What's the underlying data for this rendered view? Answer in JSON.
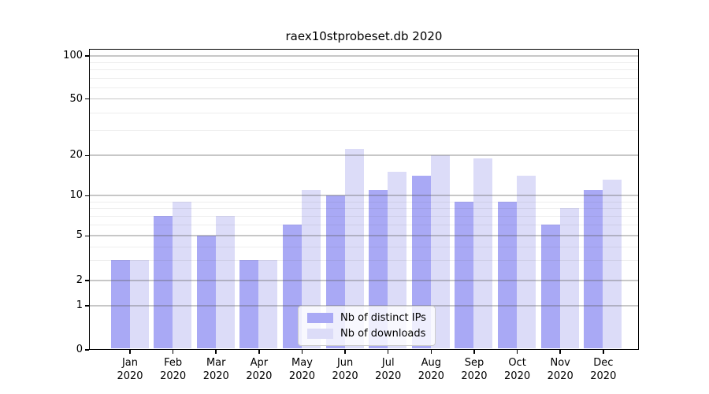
{
  "chart_data": {
    "type": "bar",
    "title": "raex10stprobeset.db 2020",
    "categories": [
      "Jan",
      "Feb",
      "Mar",
      "Apr",
      "May",
      "Jun",
      "Jul",
      "Aug",
      "Sep",
      "Oct",
      "Nov",
      "Dec"
    ],
    "year_label": "2020",
    "series": [
      {
        "name": "Nb of distinct IPs",
        "color": "#a9a9f5",
        "values": [
          3,
          7,
          5,
          3,
          6,
          10,
          11,
          14,
          9,
          9,
          6,
          11
        ]
      },
      {
        "name": "Nb of downloads",
        "color": "#dcdcf8",
        "values": [
          3,
          9,
          7,
          3,
          11,
          22,
          15,
          20,
          19,
          14,
          8,
          13
        ]
      }
    ],
    "y_axis": {
      "scale": "symlog",
      "ylim": [
        0,
        100
      ],
      "major_ticks": [
        0,
        1,
        2,
        5,
        10,
        20,
        50,
        100
      ],
      "minor_ticks": [
        3,
        4,
        6,
        7,
        8,
        9,
        30,
        40,
        60,
        70,
        80,
        90
      ]
    },
    "legend": {
      "position": "lower-center",
      "entries": [
        "Nb of distinct IPs",
        "Nb of downloads"
      ]
    },
    "grid": true
  }
}
